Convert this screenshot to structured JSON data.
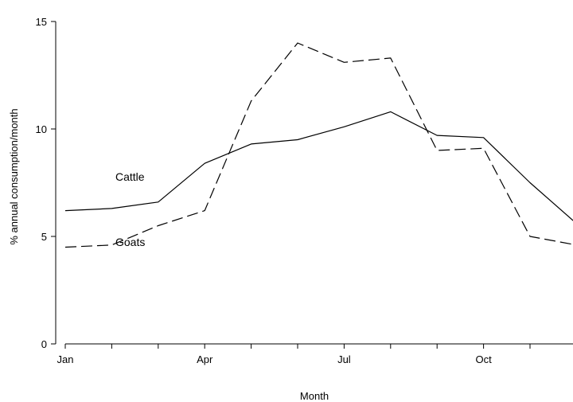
{
  "chart_data": {
    "type": "line",
    "xlabel": "Month",
    "ylabel": "% annual consumption/month",
    "x": [
      1,
      2,
      3,
      4,
      5,
      6,
      7,
      8,
      9,
      10,
      11,
      12
    ],
    "xticks": [
      {
        "value": 1,
        "label": "Jan"
      },
      {
        "value": 4,
        "label": "Apr"
      },
      {
        "value": 7,
        "label": "Jul"
      },
      {
        "value": 10,
        "label": "Oct"
      }
    ],
    "xminor": [
      1,
      2,
      3,
      4,
      5,
      6,
      7,
      8,
      9,
      10,
      11,
      12
    ],
    "xlim": [
      1,
      12.8
    ],
    "yticks": [
      0,
      5,
      10,
      15
    ],
    "ylim": [
      0,
      15
    ],
    "grid": false,
    "series": [
      {
        "name": "Cattle",
        "style": "solid",
        "color": "#000000",
        "values": [
          6.2,
          6.3,
          6.6,
          8.4,
          9.3,
          9.5,
          10.1,
          10.8,
          9.7,
          9.6,
          7.5,
          5.6
        ]
      },
      {
        "name": "Goats",
        "style": "dashed",
        "color": "#000000",
        "values": [
          4.5,
          4.6,
          5.5,
          6.2,
          11.3,
          14.0,
          13.1,
          13.3,
          9.0,
          9.1,
          5.0,
          4.6
        ]
      }
    ]
  }
}
